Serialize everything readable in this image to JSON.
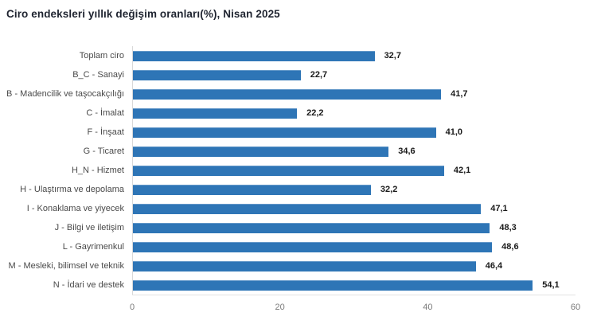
{
  "title": "Ciro endeksleri yıllık değişim oranları(%), Nisan 2025",
  "chart_data": {
    "type": "bar",
    "orientation": "horizontal",
    "title": "Ciro endeksleri yıllık değişim oranları(%), Nisan 2025",
    "categories": [
      "Toplam ciro",
      "B_C - Sanayi",
      "B - Madencilik ve taşocakçılığı",
      "C - İmalat",
      "F - İnşaat",
      "G - Ticaret",
      "H_N - Hizmet",
      "H - Ulaştırma ve depolama",
      "I - Konaklama ve yiyecek",
      "J - Bilgi ve iletişim",
      "L - Gayrimenkul",
      "M - Mesleki, bilimsel ve teknik",
      "N - İdari ve destek"
    ],
    "values": [
      32.7,
      22.7,
      41.7,
      22.2,
      41.0,
      34.6,
      42.1,
      32.2,
      47.1,
      48.3,
      48.6,
      46.4,
      54.1
    ],
    "value_labels": [
      "32,7",
      "22,7",
      "41,7",
      "22,2",
      "41,0",
      "34,6",
      "42,1",
      "32,2",
      "47,1",
      "48,3",
      "48,6",
      "46,4",
      "54,1"
    ],
    "xlabel": "",
    "ylabel": "",
    "xlim": [
      0,
      60
    ],
    "x_ticks": [
      0,
      20,
      40,
      60
    ],
    "x_tick_labels": [
      "0",
      "20",
      "40",
      "60"
    ],
    "grid": false,
    "legend": "none",
    "bar_color": "#2e75b6"
  }
}
